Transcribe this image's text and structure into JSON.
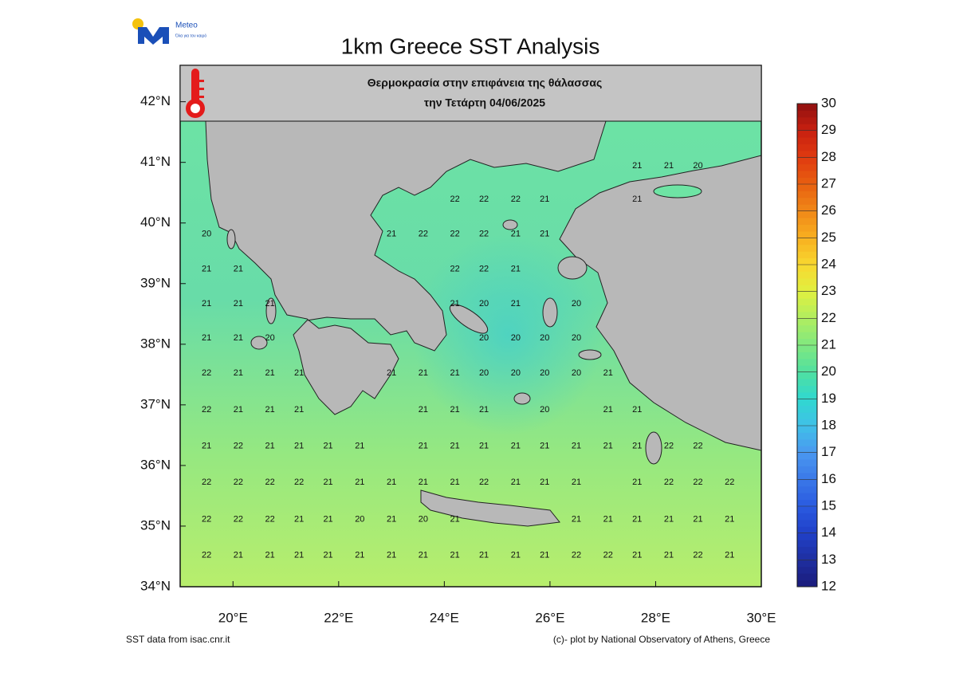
{
  "logo": {
    "name": "Meteo",
    "tagline": "Όλα για τον καιρό"
  },
  "chart_data": {
    "type": "map",
    "title": "1km Greece SST Analysis",
    "subtitle": [
      "Θερμοκρασία στην επιφάνεια της θάλασσας",
      "την Τετάρτη 04/06/2025"
    ],
    "xlim": [
      19,
      30
    ],
    "ylim": [
      34,
      42.6
    ],
    "xticks": [
      {
        "value": 20,
        "label": "20°E"
      },
      {
        "value": 22,
        "label": "22°E"
      },
      {
        "value": 24,
        "label": "24°E"
      },
      {
        "value": 26,
        "label": "26°E"
      },
      {
        "value": 28,
        "label": "28°E"
      },
      {
        "value": 30,
        "label": "30°E"
      }
    ],
    "yticks": [
      {
        "value": 34,
        "label": "34°N"
      },
      {
        "value": 35,
        "label": "35°N"
      },
      {
        "value": 36,
        "label": "36°N"
      },
      {
        "value": 37,
        "label": "37°N"
      },
      {
        "value": 38,
        "label": "38°N"
      },
      {
        "value": 39,
        "label": "39°N"
      },
      {
        "value": 40,
        "label": "40°N"
      },
      {
        "value": 41,
        "label": "41°N"
      },
      {
        "value": 42,
        "label": "42°N"
      }
    ],
    "sst_labels": [
      {
        "lat": 40.94,
        "lon": [
          27.65,
          28.25,
          28.8
        ],
        "values": [
          21,
          21,
          20
        ]
      },
      {
        "lat": 40.39,
        "lon": [
          24.2,
          24.75,
          25.35,
          25.9,
          27.65
        ],
        "values": [
          22,
          22,
          22,
          21,
          21
        ]
      },
      {
        "lat": 39.82,
        "lon": [
          19.5,
          23.0,
          23.6,
          24.2,
          24.75,
          25.35,
          25.9
        ],
        "values": [
          20,
          21,
          22,
          22,
          22,
          21,
          21
        ]
      },
      {
        "lat": 39.24,
        "lon": [
          19.5,
          20.1,
          24.2,
          24.75,
          25.35
        ],
        "values": [
          21,
          21,
          22,
          22,
          21
        ]
      },
      {
        "lat": 38.67,
        "lon": [
          19.5,
          20.1,
          20.7,
          24.2,
          24.75,
          25.35,
          26.5
        ],
        "values": [
          21,
          21,
          21,
          21,
          20,
          21,
          20
        ]
      },
      {
        "lat": 38.1,
        "lon": [
          19.5,
          20.1,
          20.7,
          24.75,
          25.35,
          25.9,
          26.5
        ],
        "values": [
          21,
          21,
          20,
          20,
          20,
          20,
          20
        ]
      },
      {
        "lat": 37.52,
        "lon": [
          19.5,
          20.1,
          20.7,
          21.25,
          23.0,
          23.6,
          24.2,
          24.75,
          25.35,
          25.9,
          26.5,
          27.1
        ],
        "values": [
          22,
          21,
          21,
          21,
          21,
          21,
          21,
          20,
          20,
          20,
          20,
          21
        ]
      },
      {
        "lat": 36.92,
        "lon": [
          19.5,
          20.1,
          20.7,
          21.25,
          23.6,
          24.2,
          24.75,
          25.9,
          27.1,
          27.65
        ],
        "values": [
          22,
          21,
          21,
          21,
          21,
          21,
          21,
          20,
          21,
          21
        ]
      },
      {
        "lat": 36.32,
        "lon": [
          19.5,
          20.1,
          20.7,
          21.25,
          21.8,
          22.4,
          23.6,
          24.2,
          24.75,
          25.35,
          25.9,
          26.5,
          27.1,
          27.65,
          28.25,
          28.8
        ],
        "values": [
          21,
          22,
          21,
          21,
          21,
          21,
          21,
          21,
          21,
          21,
          21,
          21,
          21,
          21,
          22,
          22
        ]
      },
      {
        "lat": 35.72,
        "lon": [
          19.5,
          20.1,
          20.7,
          21.25,
          21.8,
          22.4,
          23.0,
          23.6,
          24.2,
          24.75,
          25.35,
          25.9,
          26.5,
          27.65,
          28.25,
          28.8,
          29.4
        ],
        "values": [
          22,
          22,
          22,
          22,
          21,
          21,
          21,
          21,
          21,
          22,
          21,
          21,
          21,
          21,
          22,
          22,
          22
        ]
      },
      {
        "lat": 35.11,
        "lon": [
          19.5,
          20.1,
          20.7,
          21.25,
          21.8,
          22.4,
          23.0,
          23.6,
          24.2,
          26.5,
          27.1,
          27.65,
          28.25,
          28.8,
          29.4
        ],
        "values": [
          22,
          22,
          22,
          21,
          21,
          20,
          21,
          20,
          21,
          21,
          21,
          21,
          21,
          21,
          21
        ]
      },
      {
        "lat": 34.52,
        "lon": [
          19.5,
          20.1,
          20.7,
          21.25,
          21.8,
          22.4,
          23.0,
          23.6,
          24.2,
          24.75,
          25.35,
          25.9,
          26.5,
          27.1,
          27.65,
          28.25,
          28.8,
          29.4
        ],
        "values": [
          22,
          21,
          21,
          21,
          21,
          21,
          21,
          21,
          21,
          21,
          21,
          21,
          22,
          22,
          21,
          21,
          22,
          21
        ]
      }
    ],
    "colorbar": {
      "lim": [
        12,
        30
      ],
      "ticks": [
        12,
        13,
        14,
        15,
        16,
        17,
        18,
        19,
        20,
        21,
        22,
        23,
        24,
        25,
        26,
        27,
        28,
        29,
        30
      ],
      "colors": [
        "#1a1a7a",
        "#1f2fa0",
        "#2040c8",
        "#2a5ae0",
        "#3a78e8",
        "#4a98f0",
        "#40c0e8",
        "#30d8d0",
        "#50e0a0",
        "#80e880",
        "#b0ee60",
        "#e0f040",
        "#f8d830",
        "#f8b020",
        "#f08818",
        "#e86010",
        "#e03a10",
        "#c82010",
        "#901010"
      ]
    },
    "credits": [
      "SST data from isac.cnr.it",
      "(c)- plot by National Observatory of Athens, Greece"
    ]
  }
}
